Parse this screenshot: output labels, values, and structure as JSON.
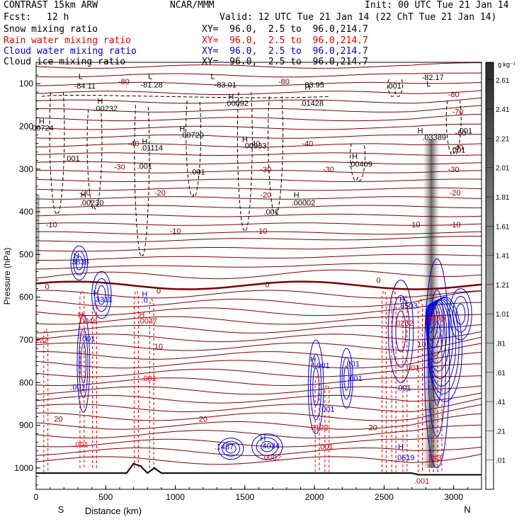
{
  "header": {
    "model": "CONTRAST 15km ARW",
    "center": "NCAR/MMM",
    "init": "Init: 00 UTC Tue 21 Jan 14",
    "fcst_label": "Fcst:",
    "fcst_value": "12 h",
    "valid": "Valid: 12 UTC Tue 21 Jan 14 (22 ChT Tue 21 Jan 14)"
  },
  "fields": [
    {
      "label": "Snow mixing ratio",
      "xy": "XY=  96.0,  2.5 to  96.0,214.7",
      "color": "#000000"
    },
    {
      "label": "Rain water mixing ratio",
      "xy": "XY=  96.0,  2.5 to  96.0,214.7",
      "color": "#e00000"
    },
    {
      "label": "Cloud water mixing ratio",
      "xy": "XY=  96.0,  2.5 to  96.0,214.7",
      "color": "#0000e0"
    },
    {
      "label": "Cloud ice mixing ratio",
      "xy": "XY=  96.0,  2.5 to  96.0,214.7",
      "color": "#000000"
    }
  ],
  "chart_data": {
    "type": "cross-section",
    "xlabel": "Distance (km)",
    "ylabel": "Pressure (hPa)",
    "xlim": [
      0,
      3200
    ],
    "ylim": [
      1050,
      50
    ],
    "x_ticks": [
      "0",
      "500",
      "1000",
      "1500",
      "2000",
      "2500",
      "3000"
    ],
    "x_tick_values": [
      0,
      500,
      1000,
      1500,
      2000,
      2500,
      3000
    ],
    "y_ticks": [
      "100",
      "200",
      "300",
      "400",
      "500",
      "600",
      "700",
      "800",
      "900",
      "1000"
    ],
    "y_tick_values": [
      100,
      200,
      300,
      400,
      500,
      600,
      700,
      800,
      900,
      1000
    ],
    "end_left": "S",
    "end_right": "N",
    "colorbar": {
      "unit": "g kg⁻¹",
      "labels": [
        "2.61",
        "2.41",
        "2.21",
        "2.01",
        "1.81",
        "1.61",
        "1.41",
        "1.21",
        "1.01",
        ".81",
        ".61",
        ".41",
        ".21",
        ".01"
      ],
      "values": [
        2.61,
        2.41,
        2.21,
        2.01,
        1.81,
        1.61,
        1.41,
        1.21,
        1.01,
        0.81,
        0.61,
        0.41,
        0.21,
        0.01
      ]
    },
    "temperature_labels": [
      {
        "text": "-80",
        "x": 630,
        "p": 95
      },
      {
        "text": "-80",
        "x": 1780,
        "p": 95
      },
      {
        "text": "-80",
        "x": 3000,
        "p": 125
      },
      {
        "text": "-70",
        "x": 3030,
        "p": 165
      },
      {
        "text": "-60",
        "x": 3050,
        "p": 215
      },
      {
        "text": "-40",
        "x": 700,
        "p": 240
      },
      {
        "text": "-40",
        "x": 1570,
        "p": 240
      },
      {
        "text": "-40",
        "x": 1950,
        "p": 240
      },
      {
        "text": "-40",
        "x": 3030,
        "p": 250
      },
      {
        "text": "-30",
        "x": 600,
        "p": 295
      },
      {
        "text": "-30",
        "x": 1650,
        "p": 300
      },
      {
        "text": "-30",
        "x": 2100,
        "p": 300
      },
      {
        "text": "-30",
        "x": 3000,
        "p": 300
      },
      {
        "text": "-20",
        "x": 350,
        "p": 355
      },
      {
        "text": "-20",
        "x": 890,
        "p": 355
      },
      {
        "text": "-20",
        "x": 1650,
        "p": 360
      },
      {
        "text": "-20",
        "x": 3010,
        "p": 355
      },
      {
        "text": "-10",
        "x": 110,
        "p": 430
      },
      {
        "text": "-10",
        "x": 1000,
        "p": 445
      },
      {
        "text": "-10",
        "x": 1620,
        "p": 445
      },
      {
        "text": "-10",
        "x": 2720,
        "p": 430
      },
      {
        "text": "-10",
        "x": 3010,
        "p": 430
      },
      {
        "text": "0",
        "x": 80,
        "p": 575
      },
      {
        "text": "0",
        "x": 880,
        "p": 585
      },
      {
        "text": "0",
        "x": 1660,
        "p": 570
      },
      {
        "text": "0",
        "x": 2460,
        "p": 560
      },
      {
        "text": "10",
        "x": 880,
        "p": 715
      },
      {
        "text": "10",
        "x": 2770,
        "p": 710
      },
      {
        "text": "20",
        "x": 1200,
        "p": 885
      },
      {
        "text": "20",
        "x": 2420,
        "p": 905
      },
      {
        "text": "20",
        "x": 160,
        "p": 885
      }
    ],
    "extrema_labels": [
      {
        "text": "L",
        "x": 320,
        "p": 82
      },
      {
        "text": "-84.11",
        "x": 350,
        "p": 105
      },
      {
        "text": "L",
        "x": 820,
        "p": 82
      },
      {
        "text": "-81.28",
        "x": 830,
        "p": 102
      },
      {
        "text": "L",
        "x": 1270,
        "p": 82
      },
      {
        "text": "-83.01",
        "x": 1360,
        "p": 102
      },
      {
        "text": "H",
        "x": 1950,
        "p": 108
      },
      {
        "text": "83.95",
        "x": 2000,
        "p": 102
      },
      {
        "text": "-82.17",
        "x": 2850,
        "p": 85
      },
      {
        "text": "L",
        "x": 2820,
        "p": 100
      },
      {
        "text": ".001",
        "x": 2570,
        "p": 105
      },
      {
        "text": "H",
        "x": 460,
        "p": 140
      },
      {
        "text": ".00232",
        "x": 500,
        "p": 158
      },
      {
        "text": "H",
        "x": 1400,
        "p": 130
      },
      {
        "text": ".00092",
        "x": 1440,
        "p": 145
      },
      {
        "text": ".01428",
        "x": 1980,
        "p": 145
      },
      {
        "text": "H",
        "x": 40,
        "p": 188
      },
      {
        "text": ".00724",
        "x": 40,
        "p": 203
      },
      {
        "text": "H",
        "x": 1050,
        "p": 205
      },
      {
        "text": ".00720",
        "x": 1120,
        "p": 220
      },
      {
        "text": "H",
        "x": 780,
        "p": 235
      },
      {
        "text": ".01114",
        "x": 830,
        "p": 250
      },
      {
        "text": "H",
        "x": 1500,
        "p": 230
      },
      {
        "text": ".00933",
        "x": 1570,
        "p": 245
      },
      {
        "text": "H",
        "x": 2760,
        "p": 210
      },
      {
        "text": ".03389",
        "x": 2860,
        "p": 225
      },
      {
        "text": ".001",
        "x": 3080,
        "p": 210
      },
      {
        "text": ".001",
        "x": 3030,
        "p": 255
      },
      {
        "text": ".001",
        "x": 260,
        "p": 275
      },
      {
        "text": ".001",
        "x": 780,
        "p": 293
      },
      {
        "text": ".001",
        "x": 1160,
        "p": 306
      },
      {
        "text": "H",
        "x": 2290,
        "p": 270
      },
      {
        "text": ".00409",
        "x": 2330,
        "p": 288
      },
      {
        "text": "H",
        "x": 340,
        "p": 360
      },
      {
        "text": ".00230",
        "x": 400,
        "p": 378
      },
      {
        "text": "H",
        "x": 1870,
        "p": 360
      },
      {
        "text": ".00002",
        "x": 1920,
        "p": 378
      },
      {
        "text": ".001",
        "x": 1690,
        "p": 400
      }
    ],
    "cloud_water_labels": [
      {
        "text": "H",
        "x": 290,
        "p": 503
      },
      {
        "text": ".3838",
        "x": 310,
        "p": 517
      },
      {
        "text": "H",
        "x": 430,
        "p": 590
      },
      {
        "text": ".3311",
        "x": 480,
        "p": 605
      },
      {
        "text": "H",
        "x": 780,
        "p": 592
      },
      {
        "text": ".0",
        "x": 780,
        "p": 606
      },
      {
        "text": ".001",
        "x": 370,
        "p": 697
      },
      {
        "text": ".001",
        "x": 300,
        "p": 810
      },
      {
        "text": "H",
        "x": 1990,
        "p": 745
      },
      {
        "text": ".5901",
        "x": 2040,
        "p": 760
      },
      {
        "text": ".001",
        "x": 2270,
        "p": 756
      },
      {
        "text": ".001",
        "x": 2290,
        "p": 790
      },
      {
        "text": ".001",
        "x": 2090,
        "p": 862
      },
      {
        "text": "H",
        "x": 2630,
        "p": 605
      },
      {
        "text": ".8503",
        "x": 2670,
        "p": 620
      },
      {
        "text": ".001",
        "x": 2640,
        "p": 812
      },
      {
        "text": ".1487",
        "x": 1350,
        "p": 950
      },
      {
        "text": "H",
        "x": 1630,
        "p": 930
      },
      {
        "text": ".4034",
        "x": 1680,
        "p": 948
      },
      {
        "text": "H",
        "x": 2620,
        "p": 950
      },
      {
        "text": ".0619",
        "x": 2650,
        "p": 975
      }
    ],
    "rain_water_labels": [
      {
        "text": "H",
        "x": 320,
        "p": 640
      },
      {
        "text": ".0046",
        "x": 370,
        "p": 655
      },
      {
        "text": "H",
        "x": 760,
        "p": 640
      },
      {
        "text": ".0047",
        "x": 800,
        "p": 655
      },
      {
        "text": ".001",
        "x": 810,
        "p": 790
      },
      {
        "text": "222",
        "x": 40,
        "p": 700
      },
      {
        "text": ".001",
        "x": 320,
        "p": 945
      },
      {
        "text": ".0122",
        "x": 2030,
        "p": 905
      },
      {
        "text": ".001",
        "x": 2080,
        "p": 950
      },
      {
        "text": ".0002",
        "x": 1690,
        "p": 975
      },
      {
        "text": ".0232",
        "x": 2640,
        "p": 660
      },
      {
        "text": ".4870",
        "x": 2870,
        "p": 650
      },
      {
        "text": ".001",
        "x": 2700,
        "p": 765
      },
      {
        "text": ".843",
        "x": 2860,
        "p": 975
      },
      {
        "text": ".001",
        "x": 2770,
        "p": 1030
      }
    ]
  }
}
